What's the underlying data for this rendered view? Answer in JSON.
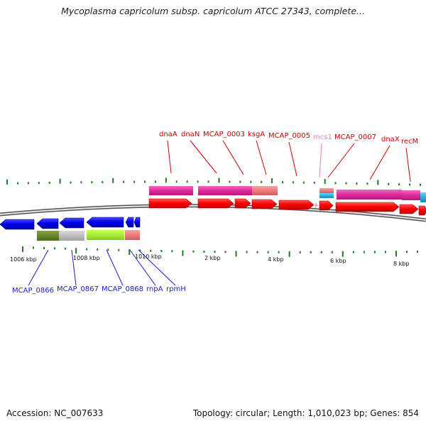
{
  "title": "Mycoplasma capricolum subsp. capricolum ATCC 27343, complete...",
  "footer": {
    "accession": "Accession: NC_007633",
    "info": "Topology: circular; Length: 1,010,023 bp; Genes: 854"
  },
  "colors": {
    "forward_label": "#cc0000",
    "reverse_label": "#1a1acc",
    "pseudo_label": "#e87fb8",
    "forward_cds": "#ff0000",
    "reverse_cds": "#0000ee",
    "backbone": "#888888",
    "tick": "#1e7a1e"
  },
  "scale_labels": [
    {
      "text": "1006 kbp"
    },
    {
      "text": "1008 kbp"
    },
    {
      "text": "1010 kbp"
    },
    {
      "text": "2 kbp"
    },
    {
      "text": "4 kbp"
    },
    {
      "text": "6 kbp"
    },
    {
      "text": "8 kbp"
    }
  ],
  "forward_genes": [
    {
      "name": "dnaA",
      "label_color": "forward_label"
    },
    {
      "name": "dnaN",
      "label_color": "forward_label"
    },
    {
      "name": "MCAP_0003",
      "label_color": "forward_label"
    },
    {
      "name": "ksgA",
      "label_color": "forward_label"
    },
    {
      "name": "MCAP_0005",
      "label_color": "forward_label"
    },
    {
      "name": "mcs1",
      "label_color": "pseudo_label"
    },
    {
      "name": "MCAP_0007",
      "label_color": "forward_label"
    },
    {
      "name": "dnaX",
      "label_color": "forward_label"
    },
    {
      "name": "recM",
      "label_color": "forward_label"
    }
  ],
  "reverse_genes": [
    {
      "name": "MCAP_0866"
    },
    {
      "name": "MCAP_0867"
    },
    {
      "name": "MCAP_0868"
    },
    {
      "name": "rnpA"
    },
    {
      "name": "rpmH"
    }
  ]
}
